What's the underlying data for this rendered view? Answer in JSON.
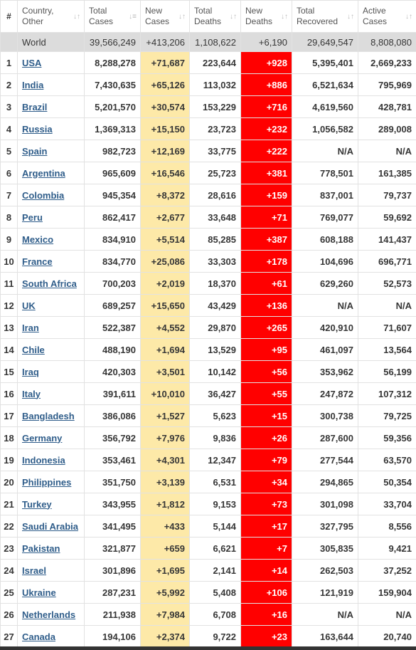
{
  "headers": {
    "hash": "#",
    "country": [
      "Country,",
      "Other"
    ],
    "total_cases": [
      "Total",
      "Cases"
    ],
    "new_cases": [
      "New",
      "Cases"
    ],
    "total_deaths": [
      "Total",
      "Deaths"
    ],
    "new_deaths": [
      "New",
      "Deaths"
    ],
    "total_recovered": [
      "Total",
      "Recovered"
    ],
    "active_cases": [
      "Active",
      "Cases"
    ]
  },
  "world": {
    "name": "World",
    "total_cases": "39,566,249",
    "new_cases": "+413,206",
    "total_deaths": "1,108,622",
    "new_deaths": "+6,190",
    "total_recovered": "29,649,547",
    "active_cases": "8,808,080"
  },
  "rows": [
    {
      "idx": "1",
      "name": "USA",
      "total_cases": "8,288,278",
      "new_cases": "+71,687",
      "total_deaths": "223,644",
      "new_deaths": "+928",
      "total_recovered": "5,395,401",
      "active_cases": "2,669,233"
    },
    {
      "idx": "2",
      "name": "India",
      "total_cases": "7,430,635",
      "new_cases": "+65,126",
      "total_deaths": "113,032",
      "new_deaths": "+886",
      "total_recovered": "6,521,634",
      "active_cases": "795,969"
    },
    {
      "idx": "3",
      "name": "Brazil",
      "total_cases": "5,201,570",
      "new_cases": "+30,574",
      "total_deaths": "153,229",
      "new_deaths": "+716",
      "total_recovered": "4,619,560",
      "active_cases": "428,781"
    },
    {
      "idx": "4",
      "name": "Russia",
      "total_cases": "1,369,313",
      "new_cases": "+15,150",
      "total_deaths": "23,723",
      "new_deaths": "+232",
      "total_recovered": "1,056,582",
      "active_cases": "289,008"
    },
    {
      "idx": "5",
      "name": "Spain",
      "total_cases": "982,723",
      "new_cases": "+12,169",
      "total_deaths": "33,775",
      "new_deaths": "+222",
      "total_recovered": "N/A",
      "active_cases": "N/A"
    },
    {
      "idx": "6",
      "name": "Argentina",
      "total_cases": "965,609",
      "new_cases": "+16,546",
      "total_deaths": "25,723",
      "new_deaths": "+381",
      "total_recovered": "778,501",
      "active_cases": "161,385"
    },
    {
      "idx": "7",
      "name": "Colombia",
      "total_cases": "945,354",
      "new_cases": "+8,372",
      "total_deaths": "28,616",
      "new_deaths": "+159",
      "total_recovered": "837,001",
      "active_cases": "79,737"
    },
    {
      "idx": "8",
      "name": "Peru",
      "total_cases": "862,417",
      "new_cases": "+2,677",
      "total_deaths": "33,648",
      "new_deaths": "+71",
      "total_recovered": "769,077",
      "active_cases": "59,692"
    },
    {
      "idx": "9",
      "name": "Mexico",
      "total_cases": "834,910",
      "new_cases": "+5,514",
      "total_deaths": "85,285",
      "new_deaths": "+387",
      "total_recovered": "608,188",
      "active_cases": "141,437"
    },
    {
      "idx": "10",
      "name": "France",
      "total_cases": "834,770",
      "new_cases": "+25,086",
      "total_deaths": "33,303",
      "new_deaths": "+178",
      "total_recovered": "104,696",
      "active_cases": "696,771"
    },
    {
      "idx": "11",
      "name": "South Africa",
      "total_cases": "700,203",
      "new_cases": "+2,019",
      "total_deaths": "18,370",
      "new_deaths": "+61",
      "total_recovered": "629,260",
      "active_cases": "52,573"
    },
    {
      "idx": "12",
      "name": "UK",
      "total_cases": "689,257",
      "new_cases": "+15,650",
      "total_deaths": "43,429",
      "new_deaths": "+136",
      "total_recovered": "N/A",
      "active_cases": "N/A"
    },
    {
      "idx": "13",
      "name": "Iran",
      "total_cases": "522,387",
      "new_cases": "+4,552",
      "total_deaths": "29,870",
      "new_deaths": "+265",
      "total_recovered": "420,910",
      "active_cases": "71,607"
    },
    {
      "idx": "14",
      "name": "Chile",
      "total_cases": "488,190",
      "new_cases": "+1,694",
      "total_deaths": "13,529",
      "new_deaths": "+95",
      "total_recovered": "461,097",
      "active_cases": "13,564"
    },
    {
      "idx": "15",
      "name": "Iraq",
      "total_cases": "420,303",
      "new_cases": "+3,501",
      "total_deaths": "10,142",
      "new_deaths": "+56",
      "total_recovered": "353,962",
      "active_cases": "56,199"
    },
    {
      "idx": "16",
      "name": "Italy",
      "total_cases": "391,611",
      "new_cases": "+10,010",
      "total_deaths": "36,427",
      "new_deaths": "+55",
      "total_recovered": "247,872",
      "active_cases": "107,312"
    },
    {
      "idx": "17",
      "name": "Bangladesh",
      "total_cases": "386,086",
      "new_cases": "+1,527",
      "total_deaths": "5,623",
      "new_deaths": "+15",
      "total_recovered": "300,738",
      "active_cases": "79,725"
    },
    {
      "idx": "18",
      "name": "Germany",
      "total_cases": "356,792",
      "new_cases": "+7,976",
      "total_deaths": "9,836",
      "new_deaths": "+26",
      "total_recovered": "287,600",
      "active_cases": "59,356"
    },
    {
      "idx": "19",
      "name": "Indonesia",
      "total_cases": "353,461",
      "new_cases": "+4,301",
      "total_deaths": "12,347",
      "new_deaths": "+79",
      "total_recovered": "277,544",
      "active_cases": "63,570"
    },
    {
      "idx": "20",
      "name": "Philippines",
      "total_cases": "351,750",
      "new_cases": "+3,139",
      "total_deaths": "6,531",
      "new_deaths": "+34",
      "total_recovered": "294,865",
      "active_cases": "50,354"
    },
    {
      "idx": "21",
      "name": "Turkey",
      "total_cases": "343,955",
      "new_cases": "+1,812",
      "total_deaths": "9,153",
      "new_deaths": "+73",
      "total_recovered": "301,098",
      "active_cases": "33,704"
    },
    {
      "idx": "22",
      "name": "Saudi Arabia",
      "total_cases": "341,495",
      "new_cases": "+433",
      "total_deaths": "5,144",
      "new_deaths": "+17",
      "total_recovered": "327,795",
      "active_cases": "8,556"
    },
    {
      "idx": "23",
      "name": "Pakistan",
      "total_cases": "321,877",
      "new_cases": "+659",
      "total_deaths": "6,621",
      "new_deaths": "+7",
      "total_recovered": "305,835",
      "active_cases": "9,421"
    },
    {
      "idx": "24",
      "name": "Israel",
      "total_cases": "301,896",
      "new_cases": "+1,695",
      "total_deaths": "2,141",
      "new_deaths": "+14",
      "total_recovered": "262,503",
      "active_cases": "37,252"
    },
    {
      "idx": "25",
      "name": "Ukraine",
      "total_cases": "287,231",
      "new_cases": "+5,992",
      "total_deaths": "5,408",
      "new_deaths": "+106",
      "total_recovered": "121,919",
      "active_cases": "159,904"
    },
    {
      "idx": "26",
      "name": "Netherlands",
      "total_cases": "211,938",
      "new_cases": "+7,984",
      "total_deaths": "6,708",
      "new_deaths": "+16",
      "total_recovered": "N/A",
      "active_cases": "N/A"
    },
    {
      "idx": "27",
      "name": "Canada",
      "total_cases": "194,106",
      "new_cases": "+2,374",
      "total_deaths": "9,722",
      "new_deaths": "+23",
      "total_recovered": "163,644",
      "active_cases": "20,740"
    }
  ],
  "icons": {
    "sort": "sort-arrows-icon"
  },
  "colors": {
    "new_cases_bg": "#fde9a8",
    "new_deaths_bg": "#ff0000",
    "link": "#2f5d8a",
    "world_row_bg": "#dcdcdc"
  }
}
